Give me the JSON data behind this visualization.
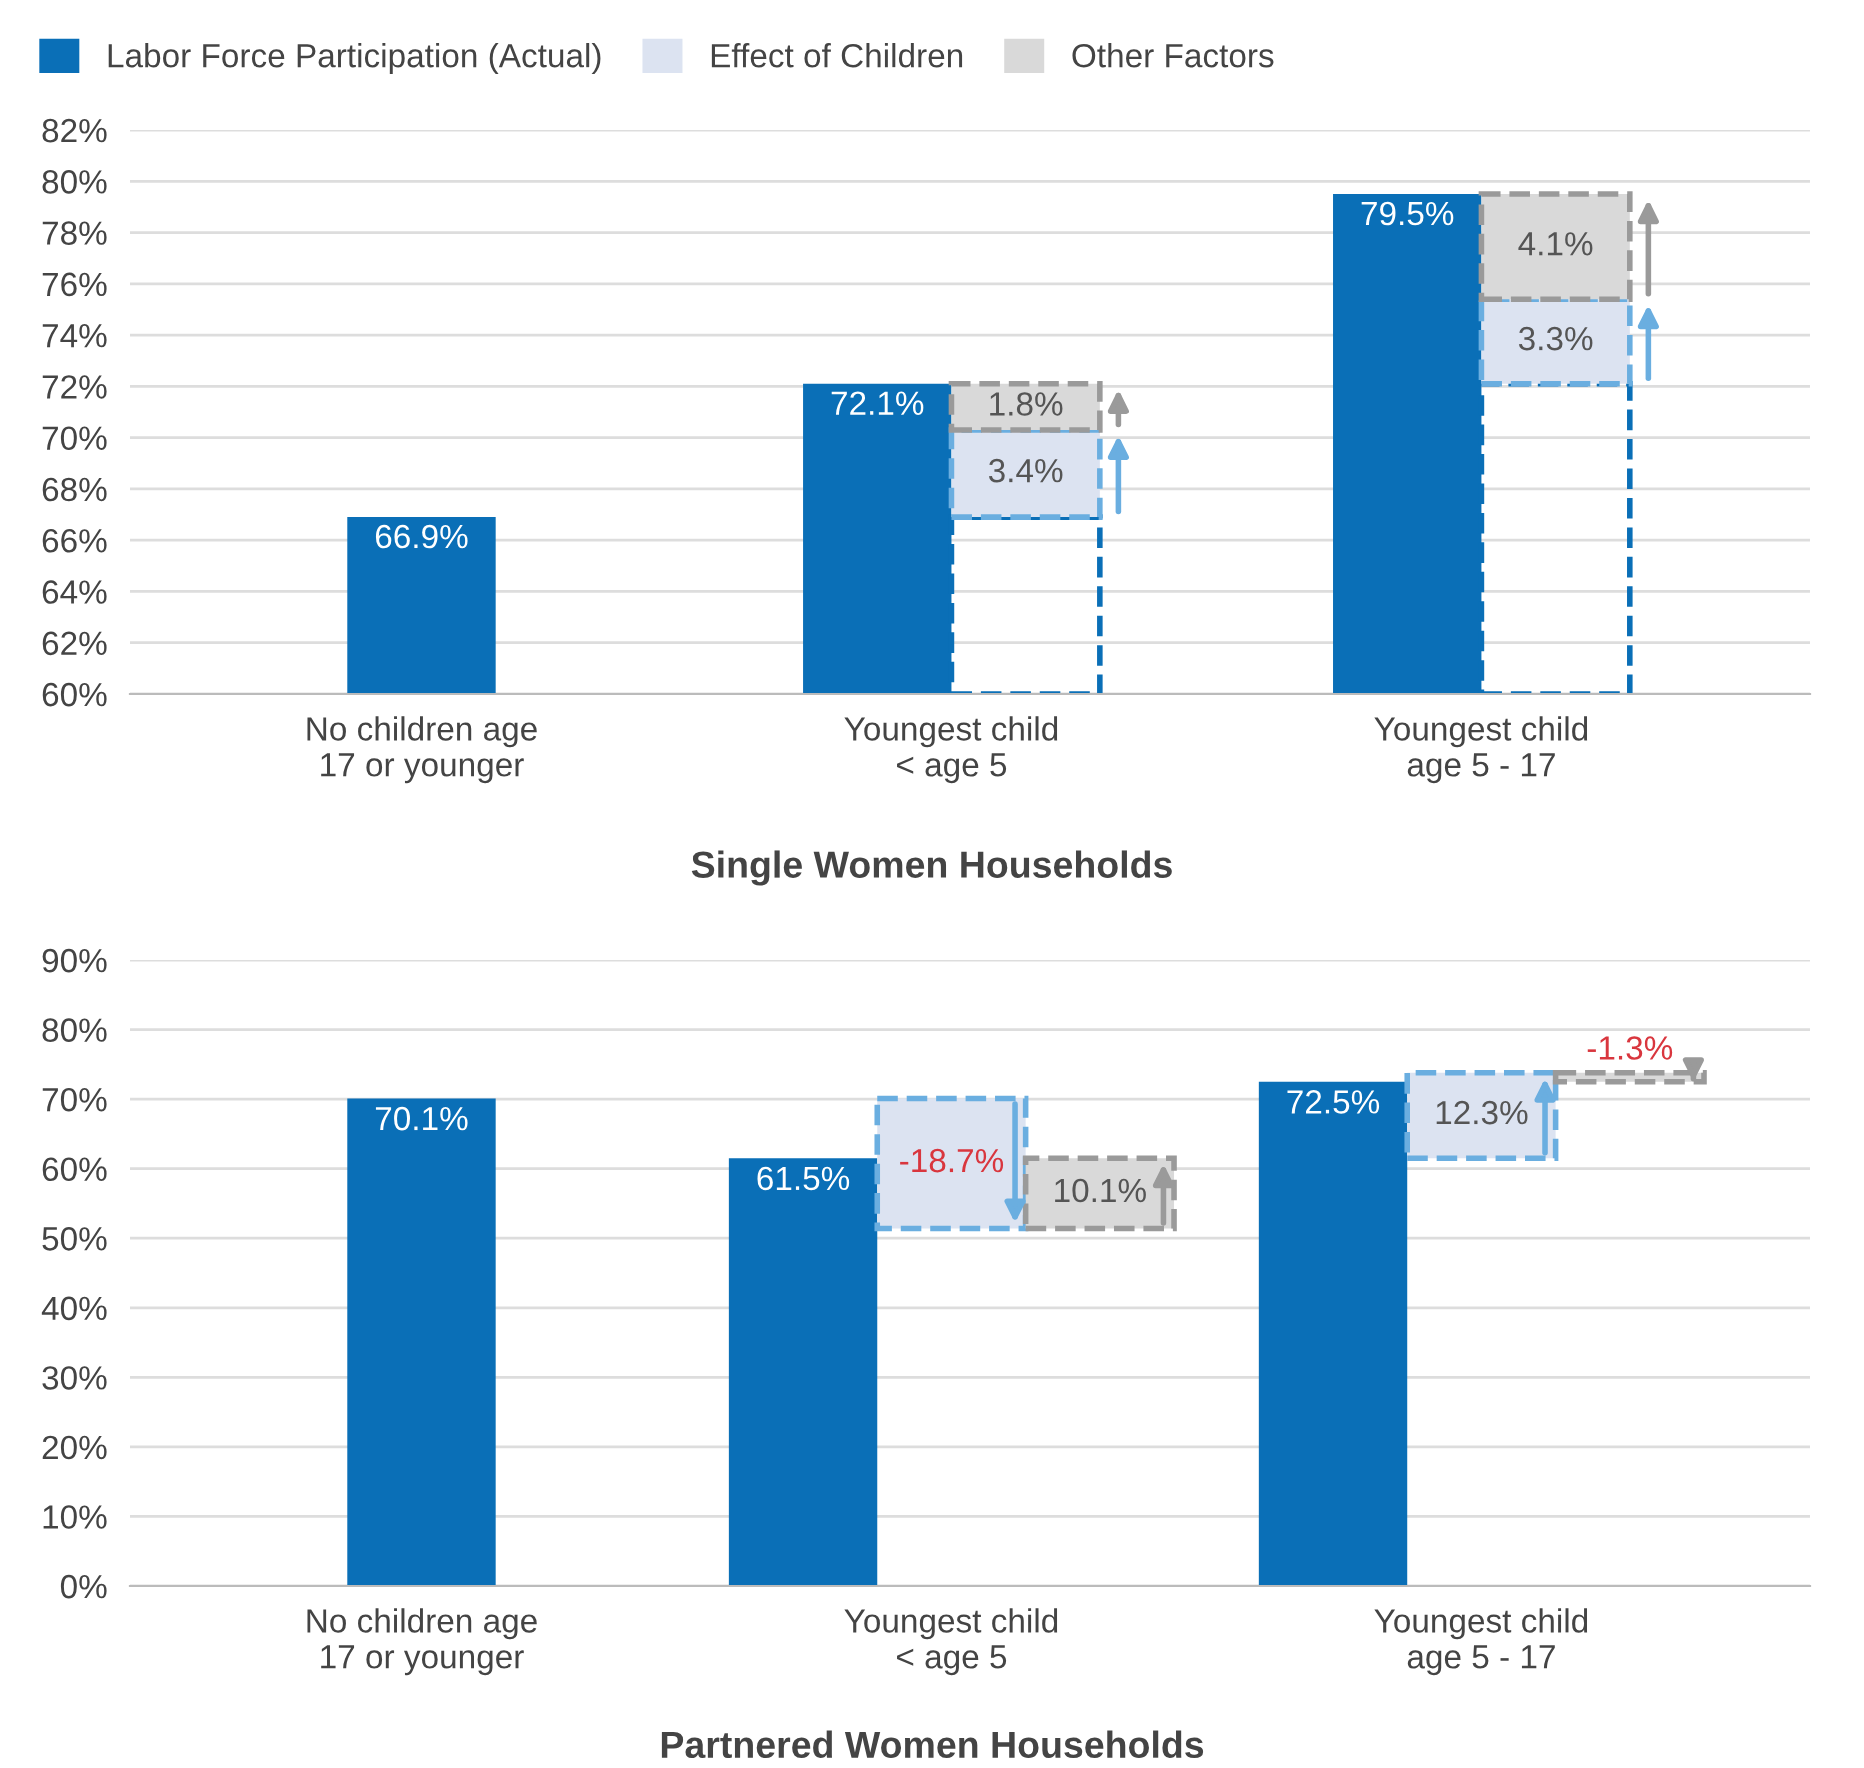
{
  "chart_data": [
    {
      "type": "bar",
      "title": "Single Women Households",
      "categories": [
        "No children age\n17 or younger",
        "Youngest child\n< age 5",
        "Youngest child\nage 5 - 17"
      ],
      "legend": "top",
      "grid": "y",
      "ylim": [
        60,
        82
      ],
      "yticks": [
        {
          "value": 60,
          "label": "60%"
        },
        {
          "value": 62,
          "label": "62%"
        },
        {
          "value": 64,
          "label": "64%"
        },
        {
          "value": 66,
          "label": "66%"
        },
        {
          "value": 68,
          "label": "68%"
        },
        {
          "value": 70,
          "label": "70%"
        },
        {
          "value": 72,
          "label": "72%"
        },
        {
          "value": 74,
          "label": "74%"
        },
        {
          "value": 76,
          "label": "76%"
        },
        {
          "value": 78,
          "label": "78%"
        },
        {
          "value": 80,
          "label": "80%"
        },
        {
          "value": 82,
          "label": "82%"
        }
      ],
      "series": [
        {
          "name": "Labor Force Participation (Actual)",
          "color": "#0a6fb7",
          "values": [
            66.9,
            72.1,
            79.5
          ],
          "value_labels": [
            "66.9%",
            "72.1%",
            "79.5%"
          ]
        },
        {
          "color": "#0a6fb7",
          "line_style": "dashed",
          "base": [
            null,
            60,
            60
          ],
          "values": [
            null,
            6.9,
            12.1
          ]
        },
        {
          "name": "Effect of Children",
          "color": "#dce3f1",
          "line_style": "dashed",
          "base": [
            null,
            66.9,
            72.1
          ],
          "values": [
            null,
            3.4,
            3.3
          ],
          "value_labels": [
            null,
            "3.4%",
            "3.3%"
          ]
        },
        {
          "name": "Other Factors",
          "color": "#d9d9d9",
          "line_style": "dashed",
          "base": [
            null,
            70.3,
            75.4
          ],
          "values": [
            null,
            1.8,
            4.1
          ],
          "value_labels": [
            null,
            "1.8%",
            "4.1%"
          ]
        }
      ]
    },
    {
      "type": "bar",
      "title": "Partnered Women Households",
      "categories": [
        "No children age\n17 or younger",
        "Youngest child\n< age 5",
        "Youngest child\nage 5 - 17"
      ],
      "grid": "y",
      "ylim": [
        0,
        90
      ],
      "yticks": [
        {
          "value": 0,
          "label": "0%"
        },
        {
          "value": 10,
          "label": "10%"
        },
        {
          "value": 20,
          "label": "20%"
        },
        {
          "value": 30,
          "label": "30%"
        },
        {
          "value": 40,
          "label": "40%"
        },
        {
          "value": 50,
          "label": "50%"
        },
        {
          "value": 60,
          "label": "60%"
        },
        {
          "value": 70,
          "label": "70%"
        },
        {
          "value": 80,
          "label": "80%"
        },
        {
          "value": 90,
          "label": "90%"
        }
      ],
      "series": [
        {
          "color": "#0a6fb7",
          "values": [
            70.1,
            61.5,
            72.5
          ],
          "value_labels": [
            "70.1%",
            "61.5%",
            "72.5%"
          ]
        },
        {
          "color": "#dce3f1",
          "line_style": "dashed",
          "base": [
            null,
            70.1,
            61.5
          ],
          "values": [
            null,
            -18.7,
            12.3
          ],
          "value_labels": [
            null,
            "-18.7%",
            "12.3%"
          ]
        },
        {
          "color": "#d9d9d9",
          "line_style": "dashed",
          "base": [
            null,
            51.4,
            73.8
          ],
          "values": [
            null,
            10.1,
            -1.3
          ],
          "value_labels": [
            null,
            "10.1%",
            "-1.3%"
          ]
        }
      ]
    }
  ]
}
